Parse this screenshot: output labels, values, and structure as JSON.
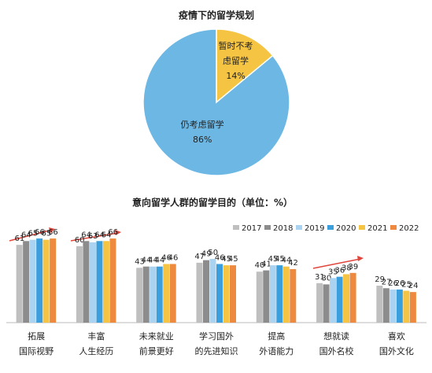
{
  "chart_data": [
    {
      "type": "pie",
      "title": "疫情下的留学规划",
      "categories": [
        "暂时不考\n虑留学",
        "仍考虑留学"
      ],
      "values": [
        14,
        86
      ],
      "value_labels": [
        "14%",
        "86%"
      ],
      "colors": [
        "#f6c443",
        "#6cb7e4"
      ]
    },
    {
      "type": "bar",
      "title": "意向留学人群的留学目的（单位：%）",
      "categories": [
        "拓展\n国际视野",
        "丰富\n人生经历",
        "未来就业\n前景更好",
        "学习国外\n的先进知识",
        "提高\n外语能力",
        "想就读\n国外名校",
        "喜欢\n国外文化"
      ],
      "series": [
        {
          "name": "2017",
          "color": "#bfbfbf",
          "values": [
            61,
            60,
            43,
            47,
            40,
            31,
            29
          ]
        },
        {
          "name": "2018",
          "color": "#8c8c8c",
          "values": [
            64,
            64,
            44,
            49,
            41,
            30,
            27
          ]
        },
        {
          "name": "2019",
          "color": "#a9d3f0",
          "values": [
            65,
            63,
            44,
            50,
            45,
            35,
            26
          ]
        },
        {
          "name": "2020",
          "color": "#3a9fdc",
          "values": [
            66,
            64,
            44,
            46,
            45,
            36,
            26
          ]
        },
        {
          "name": "2021",
          "color": "#f6c443",
          "values": [
            65,
            64,
            46,
            45,
            44,
            38,
            25
          ]
        },
        {
          "name": "2022",
          "color": "#ee8a3f",
          "values": [
            66,
            66,
            46,
            45,
            42,
            39,
            24
          ]
        }
      ],
      "legend": "top-right"
    }
  ]
}
